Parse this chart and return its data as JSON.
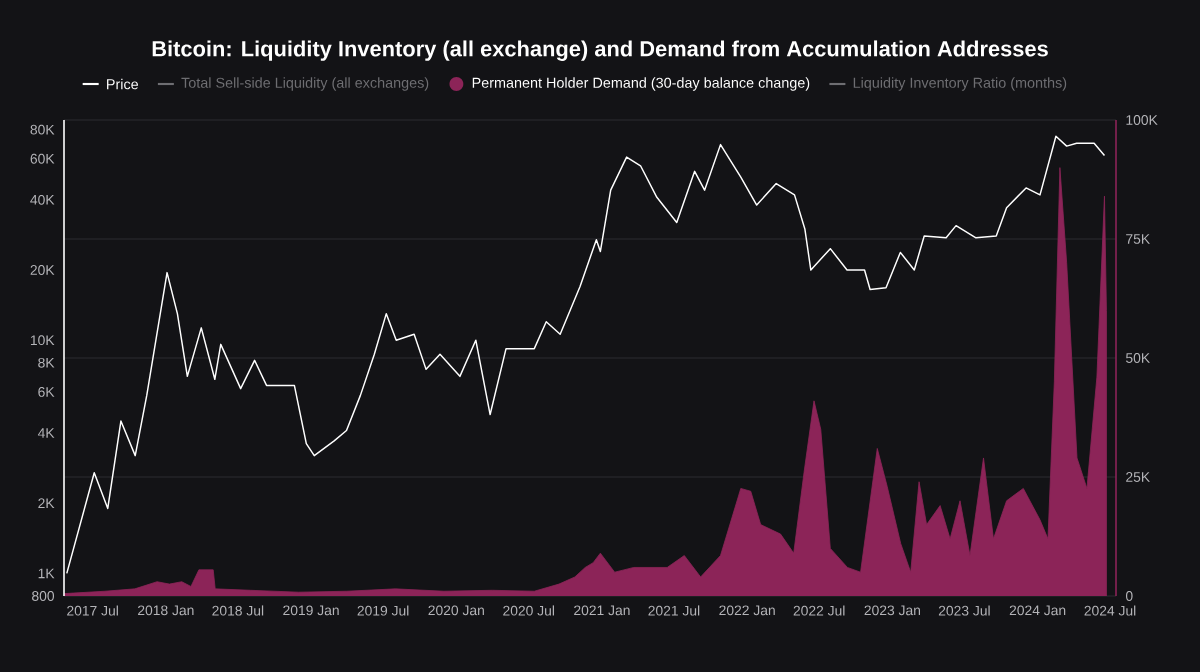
{
  "chart_data": {
    "type": "line",
    "title": "Bitcoin: Liquidity Inventory (all exchange) and Demand from Accumulation Addresses",
    "legend": "top",
    "grid": "y",
    "log": "y",
    "xlim": [
      "2017-04-20",
      "2024-07-16"
    ],
    "xticks": [
      {
        "value": "2017-07-01",
        "label": "2017 Jul"
      },
      {
        "value": "2018-01-01",
        "label": "2018 Jan"
      },
      {
        "value": "2018-07-01",
        "label": "2018 Jul"
      },
      {
        "value": "2019-01-01",
        "label": "2019 Jan"
      },
      {
        "value": "2019-07-01",
        "label": "2019 Jul"
      },
      {
        "value": "2020-01-01",
        "label": "2020 Jan"
      },
      {
        "value": "2020-07-01",
        "label": "2020 Jul"
      },
      {
        "value": "2021-01-01",
        "label": "2021 Jan"
      },
      {
        "value": "2021-07-01",
        "label": "2021 Jul"
      },
      {
        "value": "2022-01-01",
        "label": "2022 Jan"
      },
      {
        "value": "2022-07-01",
        "label": "2022 Jul"
      },
      {
        "value": "2023-01-01",
        "label": "2023 Jan"
      },
      {
        "value": "2023-07-01",
        "label": "2023 Jul"
      },
      {
        "value": "2024-01-01",
        "label": "2024 Jan"
      },
      {
        "value": "2024-07-01",
        "label": "2024 Jul"
      }
    ],
    "ylim": [
      800,
      88000
    ],
    "yticks": [
      800,
      {
        "value": 1000,
        "label": "1K"
      },
      {
        "value": 2000,
        "label": "2K"
      },
      {
        "value": 4000,
        "label": "4K"
      },
      {
        "value": 6000,
        "label": "6K"
      },
      {
        "value": 8000,
        "label": "8K"
      },
      {
        "value": 10000,
        "label": "10K"
      },
      {
        "value": 20000,
        "label": "20K"
      },
      {
        "value": 40000,
        "label": "40K"
      },
      {
        "value": 60000,
        "label": "60K"
      },
      {
        "value": 80000,
        "label": "80K"
      }
    ],
    "y2lim": [
      0,
      100000
    ],
    "y2ticks": [
      0,
      {
        "value": 25000,
        "label": "25K"
      },
      {
        "value": 50000,
        "label": "50K"
      },
      {
        "value": 75000,
        "label": "75K"
      },
      {
        "value": 100000,
        "label": "100K"
      }
    ],
    "series": [
      {
        "name": "Price",
        "color": "#ffffff",
        "x": [
          "2017-04-27",
          "2017-07-05",
          "2017-08-08",
          "2017-09-10",
          "2017-10-16",
          "2017-11-14",
          "2018-01-04",
          "2018-01-30",
          "2018-02-24",
          "2018-03-31",
          "2018-05-04",
          "2018-05-19",
          "2018-07-08",
          "2018-08-12",
          "2018-09-11",
          "2018-11-20",
          "2018-12-20",
          "2019-01-09",
          "2019-02-28",
          "2019-03-31",
          "2019-05-05",
          "2019-06-09",
          "2019-07-09",
          "2019-08-03",
          "2019-09-17",
          "2019-10-17",
          "2019-11-21",
          "2020-01-10",
          "2020-02-19",
          "2020-03-26",
          "2020-05-05",
          "2020-07-15",
          "2020-08-14",
          "2020-09-18",
          "2020-11-07",
          "2020-12-18",
          "2020-12-28",
          "2021-01-23",
          "2021-03-04",
          "2021-04-08",
          "2021-05-19",
          "2021-07-08",
          "2021-08-22",
          "2021-09-16",
          "2021-10-26",
          "2021-12-16",
          "2022-01-25",
          "2022-03-15",
          "2022-04-30",
          "2022-05-26",
          "2022-06-10",
          "2022-07-29",
          "2022-09-09",
          "2022-10-23",
          "2022-11-06",
          "2022-12-16",
          "2023-01-21",
          "2023-02-25",
          "2023-03-22",
          "2023-05-16",
          "2023-06-10",
          "2023-07-30",
          "2023-09-19",
          "2023-10-15",
          "2023-12-03",
          "2024-01-07",
          "2024-02-16",
          "2024-03-14",
          "2024-04-08",
          "2024-05-22",
          "2024-06-17"
        ],
        "values": [
          1000,
          2700,
          1900,
          4500,
          3200,
          5800,
          19500,
          13000,
          7000,
          11300,
          6800,
          9600,
          6200,
          8200,
          6400,
          6400,
          3600,
          3200,
          3700,
          4100,
          5800,
          8700,
          13000,
          10000,
          10600,
          7500,
          8700,
          7000,
          10000,
          4800,
          9200,
          9200,
          12000,
          10600,
          17000,
          27000,
          24000,
          44000,
          61000,
          56000,
          41000,
          32000,
          53000,
          44000,
          69000,
          50000,
          38000,
          47000,
          42000,
          30000,
          20000,
          24700,
          20000,
          20000,
          16500,
          16800,
          23800,
          20000,
          28000,
          27500,
          31000,
          27500,
          28000,
          37000,
          45000,
          42000,
          75000,
          68000,
          70000,
          70000,
          62000
        ]
      },
      {
        "name": "Total Sell-side Liquidity (all exchanges)",
        "color": "#6e6e72"
      },
      {
        "name": "Permanent Holder Demand (30-day balance change)",
        "type": "area",
        "axis": "y2",
        "color": "#8c2458",
        "x": [
          "2017-04-20",
          "2017-08-01",
          "2017-10-15",
          "2017-12-10",
          "2018-01-10",
          "2018-02-10",
          "2018-03-05",
          "2018-03-25",
          "2018-04-30",
          "2018-05-05",
          "2018-08-01",
          "2018-12-01",
          "2019-04-01",
          "2019-08-01",
          "2019-12-01",
          "2020-04-01",
          "2020-07-15",
          "2020-09-15",
          "2020-10-25",
          "2020-11-20",
          "2020-12-10",
          "2020-12-28",
          "2021-02-02",
          "2021-03-22",
          "2021-06-14",
          "2021-07-27",
          "2021-09-06",
          "2021-10-26",
          "2021-12-16",
          "2022-01-10",
          "2022-02-04",
          "2022-03-26",
          "2022-04-28",
          "2022-05-24",
          "2022-06-18",
          "2022-07-05",
          "2022-07-29",
          "2022-09-10",
          "2022-10-13",
          "2022-11-24",
          "2022-12-19",
          "2023-01-22",
          "2023-02-16",
          "2023-03-09",
          "2023-03-28",
          "2023-05-01",
          "2023-05-26",
          "2023-06-20",
          "2023-07-15",
          "2023-08-18",
          "2023-09-12",
          "2023-10-15",
          "2023-11-26",
          "2024-01-07",
          "2024-01-27",
          "2024-02-12",
          "2024-02-26",
          "2024-03-14",
          "2024-04-09",
          "2024-05-04",
          "2024-05-29",
          "2024-06-17",
          "2024-06-22"
        ],
        "values": [
          500,
          1000,
          1500,
          3000,
          2500,
          3000,
          2000,
          5500,
          5500,
          1500,
          1200,
          800,
          1000,
          1500,
          1000,
          1200,
          1000,
          2500,
          4000,
          6000,
          7000,
          9000,
          5000,
          6000,
          6000,
          8500,
          4000,
          8500,
          22600,
          22000,
          15000,
          13000,
          9000,
          26000,
          41000,
          35000,
          10000,
          6000,
          5000,
          31000,
          23000,
          11000,
          5000,
          24000,
          15000,
          19000,
          12000,
          20000,
          8500,
          29000,
          12000,
          20000,
          22600,
          16000,
          12000,
          45000,
          90000,
          70000,
          29000,
          22600,
          46000,
          84000,
          60000
        ]
      },
      {
        "name": "Liquidity Inventory Ratio (months)",
        "color": "#6e6e72"
      }
    ]
  }
}
